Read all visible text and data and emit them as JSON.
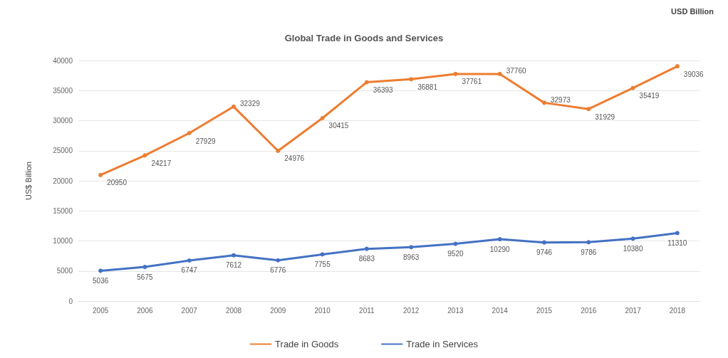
{
  "chart_data": {
    "type": "line",
    "title": "Global Trade in Goods and Services",
    "ylabel": "US$ Billion",
    "annotations": [
      "USD Billion"
    ],
    "categories": [
      "2005",
      "2006",
      "2007",
      "2008",
      "2009",
      "2010",
      "2011",
      "2012",
      "2013",
      "2014",
      "2015",
      "2016",
      "2017",
      "2018"
    ],
    "series": [
      {
        "name": "Trade in Goods",
        "color": "#ed7d31",
        "values": [
          20950,
          24217,
          27929,
          32329,
          24976,
          30415,
          36393,
          36881,
          37761,
          37760,
          32973,
          31929,
          35419,
          39036
        ]
      },
      {
        "name": "Trade in Services",
        "color": "#4472c4",
        "values": [
          5036,
          5675,
          6747,
          7612,
          6776,
          7755,
          8683,
          8963,
          9520,
          10290,
          9746,
          9786,
          10380,
          11310
        ]
      }
    ],
    "ylim": [
      0,
      40000
    ],
    "yticks": [
      0,
      5000,
      10000,
      15000,
      20000,
      25000,
      30000,
      35000,
      40000
    ],
    "grid": "y",
    "legend": "bottom",
    "marker": "circle",
    "line_style": "solid",
    "data_labels": true
  }
}
